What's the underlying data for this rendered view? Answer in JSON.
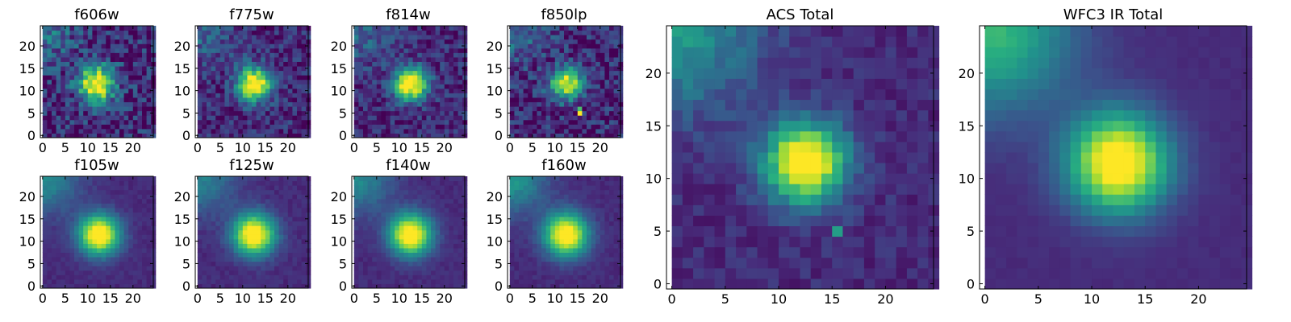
{
  "figure": {
    "colormap": "viridis",
    "colormap_stops": [
      "#440154",
      "#472d7b",
      "#3b528b",
      "#2c728e",
      "#21918c",
      "#28ae80",
      "#5ec962",
      "#addc30",
      "#fde725"
    ]
  },
  "chart_data": [
    {
      "type": "heatmap",
      "title": "f606w",
      "noise": 0.4,
      "peak": 1.0,
      "blob_sigma": 2.8,
      "center": [
        11.5,
        11.5
      ],
      "corner_glow": 0.25,
      "hot_pixels": [],
      "xticks": [
        0,
        5,
        10,
        15,
        20
      ],
      "yticks": [
        0,
        5,
        10,
        15,
        20
      ],
      "xlim": [
        -0.5,
        24.5
      ],
      "ylim": [
        -0.5,
        24.5
      ]
    },
    {
      "type": "heatmap",
      "title": "f775w",
      "noise": 0.3,
      "peak": 1.0,
      "blob_sigma": 2.6,
      "center": [
        12,
        11.5
      ],
      "corner_glow": 0.22,
      "hot_pixels": [],
      "xticks": [
        0,
        5,
        10,
        15,
        20
      ],
      "yticks": [
        0,
        5,
        10,
        15,
        20
      ],
      "xlim": [
        -0.5,
        24.5
      ],
      "ylim": [
        -0.5,
        24.5
      ]
    },
    {
      "type": "heatmap",
      "title": "f814w",
      "noise": 0.28,
      "peak": 1.0,
      "blob_sigma": 2.6,
      "center": [
        12,
        11.5
      ],
      "corner_glow": 0.22,
      "hot_pixels": [],
      "xticks": [
        0,
        5,
        10,
        15,
        20
      ],
      "yticks": [
        0,
        5,
        10,
        15,
        20
      ],
      "xlim": [
        -0.5,
        24.5
      ],
      "ylim": [
        -0.5,
        24.5
      ]
    },
    {
      "type": "heatmap",
      "title": "f850lp",
      "noise": 0.35,
      "peak": 0.85,
      "blob_sigma": 2.5,
      "center": [
        12,
        11.5
      ],
      "corner_glow": 0.25,
      "hot_pixels": [
        {
          "x": 15,
          "y": 5,
          "v": 1.0
        },
        {
          "x": 15,
          "y": 6,
          "v": 0.7
        }
      ],
      "xticks": [
        0,
        5,
        10,
        15,
        20
      ],
      "yticks": [
        0,
        5,
        10,
        15,
        20
      ],
      "xlim": [
        -0.5,
        24.5
      ],
      "ylim": [
        -0.5,
        24.5
      ]
    },
    {
      "type": "heatmap",
      "title": "f105w",
      "noise": 0.07,
      "peak": 1.0,
      "blob_sigma": 3.2,
      "center": [
        12,
        11.5
      ],
      "corner_glow": 0.35,
      "hot_pixels": [],
      "xticks": [
        0,
        5,
        10,
        15,
        20
      ],
      "yticks": [
        0,
        5,
        10,
        15,
        20
      ],
      "xlim": [
        -0.5,
        24.5
      ],
      "ylim": [
        -0.5,
        24.5
      ]
    },
    {
      "type": "heatmap",
      "title": "f125w",
      "noise": 0.08,
      "peak": 1.0,
      "blob_sigma": 3.3,
      "center": [
        12,
        11.5
      ],
      "corner_glow": 0.32,
      "hot_pixels": [],
      "xticks": [
        0,
        5,
        10,
        15,
        20
      ],
      "yticks": [
        0,
        5,
        10,
        15,
        20
      ],
      "xlim": [
        -0.5,
        24.5
      ],
      "ylim": [
        -0.5,
        24.5
      ]
    },
    {
      "type": "heatmap",
      "title": "f140w",
      "noise": 0.07,
      "peak": 1.0,
      "blob_sigma": 3.3,
      "center": [
        12,
        11.5
      ],
      "corner_glow": 0.35,
      "hot_pixels": [],
      "xticks": [
        0,
        5,
        10,
        15,
        20
      ],
      "yticks": [
        0,
        5,
        10,
        15,
        20
      ],
      "xlim": [
        -0.5,
        24.5
      ],
      "ylim": [
        -0.5,
        24.5
      ]
    },
    {
      "type": "heatmap",
      "title": "f160w",
      "noise": 0.07,
      "peak": 1.0,
      "blob_sigma": 3.4,
      "center": [
        12,
        11.5
      ],
      "corner_glow": 0.4,
      "hot_pixels": [],
      "xticks": [
        0,
        5,
        10,
        15,
        20
      ],
      "yticks": [
        0,
        5,
        10,
        15,
        20
      ],
      "xlim": [
        -0.5,
        24.5
      ],
      "ylim": [
        -0.5,
        24.5
      ]
    },
    {
      "type": "heatmap",
      "title": "ACS Total",
      "noise": 0.14,
      "peak": 1.0,
      "blob_sigma": 2.7,
      "center": [
        12,
        11.5
      ],
      "corner_glow": 0.4,
      "hot_pixels": [
        {
          "x": 15,
          "y": 5,
          "v": 0.55
        }
      ],
      "xticks": [
        0,
        5,
        10,
        15,
        20
      ],
      "yticks": [
        0,
        5,
        10,
        15,
        20
      ],
      "xlim": [
        -0.5,
        24.5
      ],
      "ylim": [
        -0.5,
        24.5
      ]
    },
    {
      "type": "heatmap",
      "title": "WFC3 IR Total",
      "noise": 0.03,
      "peak": 1.0,
      "blob_sigma": 3.3,
      "center": [
        12,
        11.5
      ],
      "corner_glow": 0.55,
      "hot_pixels": [],
      "xticks": [
        0,
        5,
        10,
        15,
        20
      ],
      "yticks": [
        0,
        5,
        10,
        15,
        20
      ],
      "xlim": [
        -0.5,
        24.5
      ],
      "ylim": [
        -0.5,
        24.5
      ]
    }
  ]
}
